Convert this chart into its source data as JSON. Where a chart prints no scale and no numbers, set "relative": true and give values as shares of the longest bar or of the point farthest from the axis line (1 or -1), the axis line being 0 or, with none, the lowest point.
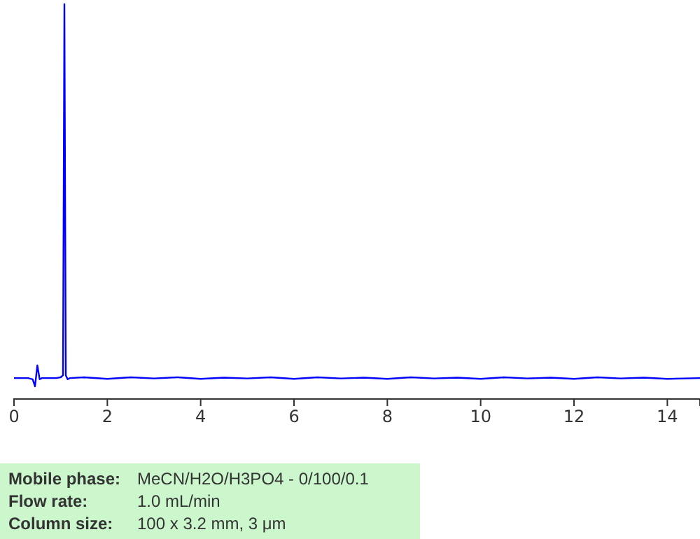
{
  "chart_data": {
    "type": "line",
    "relative": true,
    "xlim": [
      0,
      14.7
    ],
    "xticks": [
      0,
      2,
      4,
      6,
      8,
      10,
      12,
      14
    ],
    "series": [
      {
        "color": "#0000ff",
        "x": [
          0,
          0.3,
          0.4,
          0.45,
          0.5,
          0.55,
          0.6,
          0.9,
          1.0,
          1.05,
          1.08,
          1.11,
          1.15,
          1.2,
          1.5,
          2.0,
          2.5,
          3.0,
          3.5,
          4.0,
          4.5,
          5.0,
          5.5,
          6.0,
          6.5,
          7.0,
          7.5,
          8.0,
          8.5,
          9.0,
          9.5,
          10.0,
          10.5,
          11.0,
          11.5,
          12.0,
          12.5,
          13.0,
          13.5,
          14.0,
          14.7
        ],
        "values": [
          0.053,
          0.053,
          0.05,
          0.032,
          0.085,
          0.05,
          0.053,
          0.053,
          0.055,
          0.06,
          1,
          0.06,
          0.05,
          0.053,
          0.055,
          0.051,
          0.055,
          0.052,
          0.055,
          0.051,
          0.054,
          0.052,
          0.055,
          0.051,
          0.055,
          0.052,
          0.054,
          0.051,
          0.055,
          0.052,
          0.054,
          0.051,
          0.055,
          0.052,
          0.054,
          0.051,
          0.055,
          0.052,
          0.054,
          0.051,
          0.053
        ]
      }
    ],
    "annotations": [
      "Mobile phase: MeCN/H2O/H3PO4 - 0/100/0.1",
      "Flow rate: 1.0 mL/min",
      "Column size: 100 x 3.2 mm, 3 μm"
    ]
  }
}
